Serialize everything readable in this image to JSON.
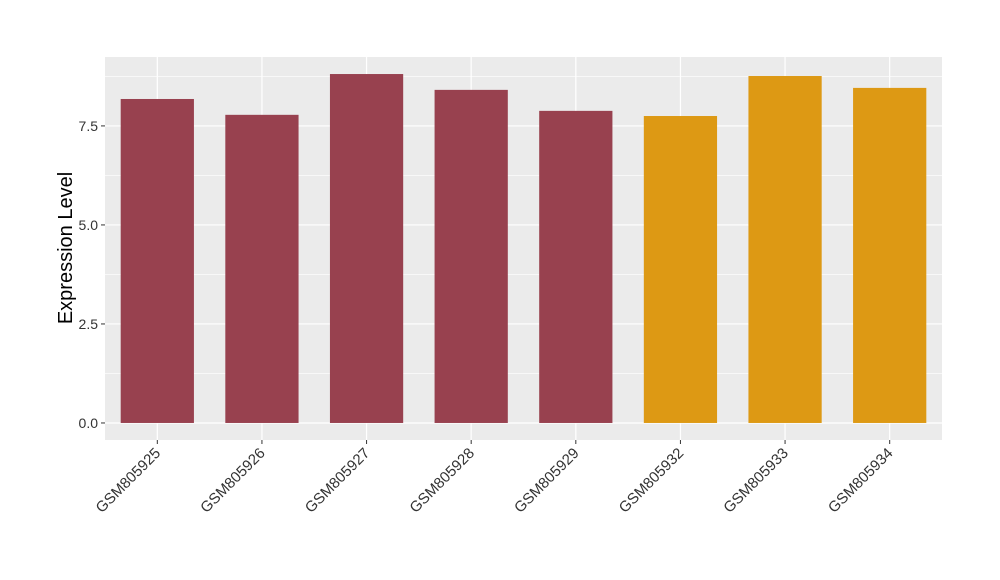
{
  "chart_data": {
    "type": "bar",
    "y_label": "Expression Level",
    "categories": [
      "GSM805925",
      "GSM805926",
      "GSM805927",
      "GSM805928",
      "GSM805929",
      "GSM805932",
      "GSM805933",
      "GSM805934"
    ],
    "values": [
      8.18,
      7.78,
      8.81,
      8.41,
      7.88,
      7.75,
      8.76,
      8.46
    ],
    "colors": [
      "#98414f",
      "#98414f",
      "#98414f",
      "#98414f",
      "#98414f",
      "#dd9914",
      "#dd9914",
      "#dd9914"
    ],
    "ylim": [
      -0.43,
      9.24
    ],
    "yticks": [
      {
        "value": 0,
        "label": "0.0"
      },
      2.5,
      {
        "value": 5,
        "label": "5.0"
      },
      7.5
    ],
    "grid": true
  }
}
